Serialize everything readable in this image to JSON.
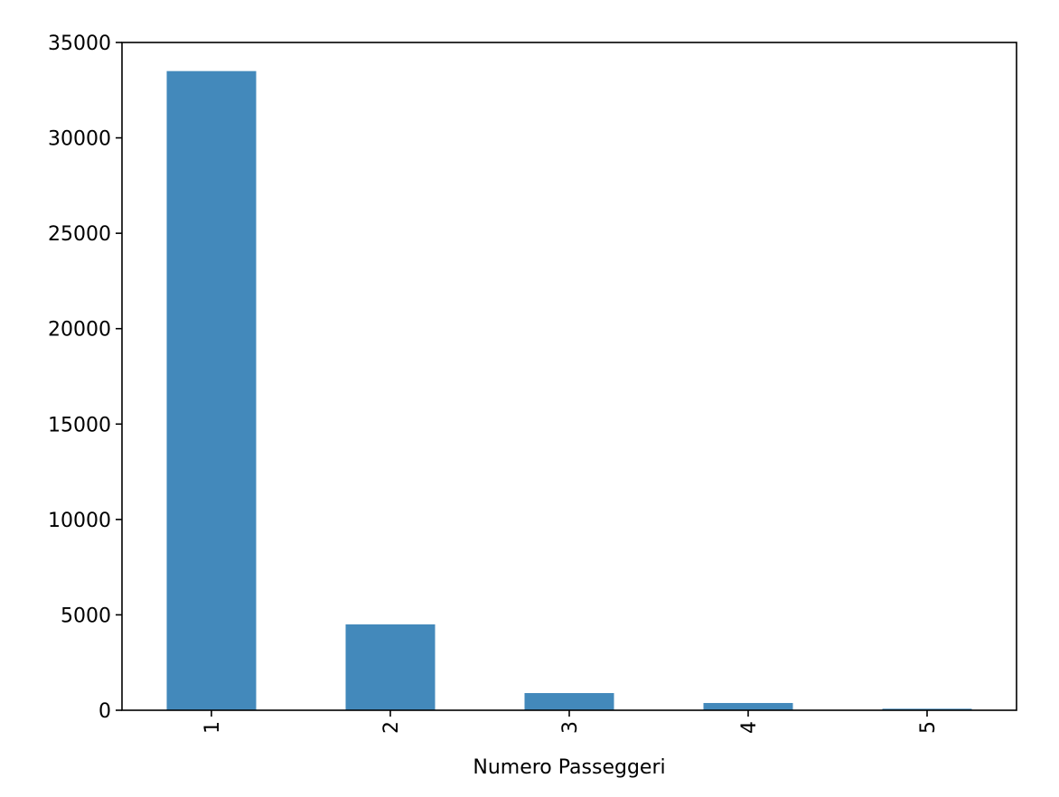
{
  "chart_data": {
    "type": "bar",
    "title": "",
    "xlabel": "Numero Passeggeri",
    "ylabel": "",
    "categories": [
      "1",
      "2",
      "3",
      "4",
      "5"
    ],
    "series": [
      {
        "values": [
          33500,
          4500,
          900,
          380,
          80
        ]
      }
    ],
    "ylim": [
      0,
      35000
    ],
    "yticks": [
      0,
      5000,
      10000,
      15000,
      20000,
      25000,
      30000,
      35000
    ],
    "ytick_labels": [
      "0",
      "5000",
      "10000",
      "15000",
      "20000",
      "25000",
      "30000",
      "35000"
    ],
    "xtick_rotation": "vertical",
    "grid": false,
    "legend": "none",
    "bar_color": "#4389bb"
  }
}
